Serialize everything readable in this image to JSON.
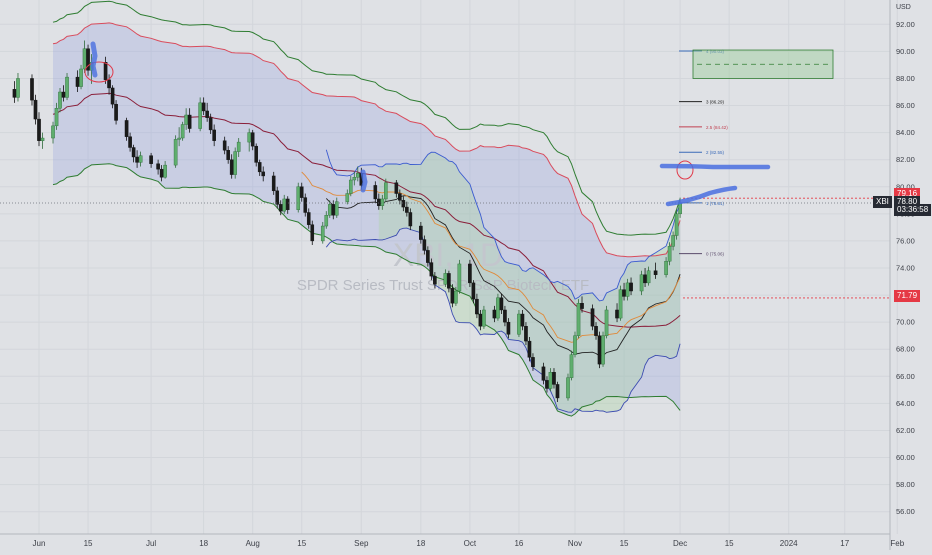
{
  "watermark": {
    "symbol": "XBI, 1D",
    "description": "SPDR Series Trust SPDR S&P Biotech ETF"
  },
  "currency_label": "USD",
  "ticker_tag": "XBI",
  "price_tags": {
    "upper": "79.16",
    "last": "78.80",
    "countdown": "03:36:58",
    "lower": "71.79"
  },
  "fib_levels": [
    {
      "label": "0 (75.06)",
      "value": 75.06,
      "color": "#5a4a6a"
    },
    {
      "label": "1 (78.81)",
      "value": 78.81,
      "color": "#3a6ab8"
    },
    {
      "label": "2 (82.55)",
      "value": 82.55,
      "color": "#3a6ab8"
    },
    {
      "label": "2.5 (84.42)",
      "value": 84.42,
      "color": "#c04050"
    },
    {
      "label": "3 (86.29)",
      "value": 86.29,
      "color": "#222222"
    },
    {
      "label": "4 (90.03)",
      "value": 90.03,
      "color": "#3a6ab8"
    }
  ],
  "colors": {
    "up": "#5fae6e",
    "down": "#1b1b1b",
    "bg": "#dfe1e5",
    "accent_blue": "#4a6fe0",
    "annotation_red": "#e03a4a"
  },
  "chart_data": {
    "type": "candlestick",
    "ylim": [
      54.5,
      93.5
    ],
    "yticks": [
      56,
      58,
      60,
      62,
      64,
      66,
      68,
      70,
      72,
      74,
      76,
      78,
      80,
      82,
      84,
      86,
      88,
      90,
      92
    ],
    "ytick_labels": [
      "56.00",
      "58.00",
      "60.00",
      "62.00",
      "64.00",
      "66.00",
      "68.00",
      "70.00",
      "72.00",
      "74.00",
      "76.00",
      "78.00",
      "80.00",
      "82.00",
      "84.00",
      "86.00",
      "88.00",
      "90.00",
      "92.00"
    ],
    "xticks": [
      {
        "label": "Jun",
        "date": "2023-06-01"
      },
      {
        "label": "15",
        "date": "2023-06-15"
      },
      {
        "label": "Jul",
        "date": "2023-07-03"
      },
      {
        "label": "18",
        "date": "2023-07-18"
      },
      {
        "label": "Aug",
        "date": "2023-08-01"
      },
      {
        "label": "15",
        "date": "2023-08-15"
      },
      {
        "label": "Sep",
        "date": "2023-09-01"
      },
      {
        "label": "18",
        "date": "2023-09-18"
      },
      {
        "label": "Oct",
        "date": "2023-10-02"
      },
      {
        "label": "16",
        "date": "2023-10-16"
      },
      {
        "label": "Nov",
        "date": "2023-11-01"
      },
      {
        "label": "15",
        "date": "2023-11-15"
      },
      {
        "label": "Dec",
        "date": "2023-12-01"
      },
      {
        "label": "15",
        "date": "2023-12-15"
      },
      {
        "label": "2024",
        "date": "2024-01-01"
      },
      {
        "label": "17",
        "date": "2024-01-17"
      },
      {
        "label": "Feb",
        "date": "2024-02-01"
      }
    ],
    "candles": [
      [
        "2023-05-25",
        87.2,
        87.8,
        86.2,
        86.6
      ],
      [
        "2023-05-26",
        86.6,
        88.4,
        86.3,
        88.0
      ],
      [
        "2023-05-30",
        88.0,
        88.3,
        86.0,
        86.4
      ],
      [
        "2023-05-31",
        86.4,
        86.8,
        84.6,
        85.0
      ],
      [
        "2023-06-01",
        85.0,
        85.5,
        83.0,
        83.4
      ],
      [
        "2023-06-02",
        83.4,
        84.0,
        82.8,
        83.6
      ],
      [
        "2023-06-05",
        83.6,
        84.8,
        83.2,
        84.5
      ],
      [
        "2023-06-06",
        84.5,
        86.2,
        84.2,
        85.8
      ],
      [
        "2023-06-07",
        85.8,
        87.3,
        85.5,
        87.0
      ],
      [
        "2023-06-08",
        87.0,
        87.5,
        86.3,
        86.6
      ],
      [
        "2023-06-09",
        86.6,
        88.4,
        86.4,
        88.1
      ],
      [
        "2023-06-12",
        88.1,
        88.6,
        87.0,
        87.4
      ],
      [
        "2023-06-13",
        87.4,
        89.0,
        87.2,
        88.7
      ],
      [
        "2023-06-14",
        88.7,
        90.8,
        88.4,
        90.2
      ],
      [
        "2023-06-15",
        90.2,
        90.5,
        88.2,
        88.6
      ],
      [
        "2023-06-16",
        88.6,
        89.8,
        87.6,
        89.2
      ],
      [
        "2023-06-20",
        89.2,
        89.6,
        87.6,
        87.9
      ],
      [
        "2023-06-21",
        87.9,
        88.3,
        86.8,
        87.3
      ],
      [
        "2023-06-22",
        87.3,
        87.5,
        85.8,
        86.1
      ],
      [
        "2023-06-23",
        86.1,
        86.4,
        84.6,
        84.9
      ],
      [
        "2023-06-26",
        84.9,
        85.1,
        83.4,
        83.7
      ],
      [
        "2023-06-27",
        83.7,
        84.0,
        82.6,
        82.9
      ],
      [
        "2023-06-28",
        82.9,
        83.1,
        81.8,
        82.2
      ],
      [
        "2023-06-29",
        82.2,
        82.7,
        81.4,
        81.8
      ],
      [
        "2023-06-30",
        81.8,
        82.6,
        81.5,
        82.3
      ],
      [
        "2023-07-03",
        82.3,
        82.5,
        81.4,
        81.7
      ],
      [
        "2023-07-05",
        81.7,
        82.0,
        80.9,
        81.3
      ],
      [
        "2023-07-06",
        81.3,
        81.6,
        80.4,
        80.7
      ],
      [
        "2023-07-07",
        80.7,
        81.9,
        80.6,
        81.6
      ],
      [
        "2023-07-10",
        81.6,
        83.8,
        81.4,
        83.5
      ],
      [
        "2023-07-11",
        83.5,
        84.4,
        83.0,
        83.6
      ],
      [
        "2023-07-12",
        83.6,
        84.8,
        83.4,
        84.6
      ],
      [
        "2023-07-13",
        84.6,
        85.8,
        84.2,
        85.3
      ],
      [
        "2023-07-14",
        85.3,
        85.8,
        84.0,
        84.3
      ],
      [
        "2023-07-17",
        84.3,
        86.6,
        84.1,
        86.2
      ],
      [
        "2023-07-18",
        86.2,
        86.6,
        85.3,
        85.6
      ],
      [
        "2023-07-19",
        85.6,
        86.2,
        84.8,
        85.1
      ],
      [
        "2023-07-20",
        85.1,
        85.4,
        83.9,
        84.2
      ],
      [
        "2023-07-21",
        84.2,
        84.6,
        83.0,
        83.4
      ],
      [
        "2023-07-24",
        83.4,
        83.7,
        82.4,
        82.7
      ],
      [
        "2023-07-25",
        82.7,
        83.0,
        81.7,
        82.0
      ],
      [
        "2023-07-26",
        82.0,
        82.4,
        80.6,
        80.9
      ],
      [
        "2023-07-27",
        80.9,
        82.9,
        80.6,
        82.6
      ],
      [
        "2023-07-28",
        82.6,
        83.6,
        82.2,
        83.3
      ],
      [
        "2023-07-31",
        83.3,
        84.3,
        82.6,
        84.0
      ],
      [
        "2023-08-01",
        84.0,
        84.2,
        82.7,
        83.0
      ],
      [
        "2023-08-02",
        83.0,
        83.2,
        81.5,
        81.8
      ],
      [
        "2023-08-03",
        81.8,
        82.0,
        80.8,
        81.1
      ],
      [
        "2023-08-04",
        81.1,
        81.5,
        80.4,
        80.8
      ],
      [
        "2023-08-07",
        80.8,
        81.1,
        79.4,
        79.7
      ],
      [
        "2023-08-08",
        79.7,
        80.0,
        78.4,
        78.7
      ],
      [
        "2023-08-09",
        78.7,
        79.0,
        77.9,
        78.2
      ],
      [
        "2023-08-10",
        78.2,
        79.4,
        78.0,
        79.1
      ],
      [
        "2023-08-11",
        79.1,
        79.3,
        78.0,
        78.3
      ],
      [
        "2023-08-14",
        78.3,
        80.3,
        78.1,
        80.0
      ],
      [
        "2023-08-15",
        80.0,
        80.3,
        78.9,
        79.2
      ],
      [
        "2023-08-16",
        79.2,
        79.5,
        77.8,
        78.1
      ],
      [
        "2023-08-17",
        78.1,
        78.4,
        76.9,
        77.2
      ],
      [
        "2023-08-18",
        77.2,
        77.5,
        75.7,
        76.0
      ],
      [
        "2023-08-21",
        76.0,
        77.4,
        75.8,
        77.1
      ],
      [
        "2023-08-22",
        77.1,
        78.2,
        76.9,
        77.9
      ],
      [
        "2023-08-23",
        77.9,
        79.0,
        77.7,
        78.7
      ],
      [
        "2023-08-24",
        78.7,
        79.0,
        77.6,
        77.9
      ],
      [
        "2023-08-25",
        77.9,
        79.2,
        77.7,
        78.9
      ],
      [
        "2023-08-28",
        78.9,
        79.8,
        78.7,
        79.5
      ],
      [
        "2023-08-29",
        79.5,
        80.8,
        79.3,
        80.5
      ],
      [
        "2023-08-30",
        80.5,
        81.1,
        80.1,
        80.7
      ],
      [
        "2023-08-31",
        80.7,
        81.5,
        80.4,
        81.0
      ],
      [
        "2023-09-01",
        81.0,
        81.4,
        79.8,
        80.1
      ],
      [
        "2023-09-05",
        80.1,
        80.4,
        78.8,
        79.1
      ],
      [
        "2023-09-06",
        79.1,
        79.5,
        78.3,
        78.6
      ],
      [
        "2023-09-07",
        78.6,
        79.4,
        78.3,
        79.1
      ],
      [
        "2023-09-08",
        79.1,
        80.6,
        78.9,
        80.3
      ],
      [
        "2023-09-11",
        80.3,
        80.5,
        79.2,
        79.5
      ],
      [
        "2023-09-12",
        79.5,
        79.8,
        78.7,
        79.0
      ],
      [
        "2023-09-13",
        79.0,
        79.3,
        78.2,
        78.5
      ],
      [
        "2023-09-14",
        78.5,
        78.9,
        77.8,
        78.1
      ],
      [
        "2023-09-15",
        78.1,
        78.4,
        76.8,
        77.1
      ],
      [
        "2023-09-18",
        77.1,
        77.4,
        75.8,
        76.1
      ],
      [
        "2023-09-19",
        76.1,
        76.4,
        75.0,
        75.3
      ],
      [
        "2023-09-20",
        75.3,
        75.6,
        74.1,
        74.4
      ],
      [
        "2023-09-21",
        74.4,
        74.7,
        73.1,
        73.4
      ],
      [
        "2023-09-22",
        73.4,
        73.7,
        72.5,
        72.8
      ],
      [
        "2023-09-25",
        72.8,
        73.9,
        72.6,
        73.6
      ],
      [
        "2023-09-26",
        73.6,
        73.8,
        72.2,
        72.5
      ],
      [
        "2023-09-27",
        72.5,
        72.8,
        71.1,
        71.4
      ],
      [
        "2023-09-28",
        71.4,
        72.6,
        71.2,
        72.3
      ],
      [
        "2023-09-29",
        72.3,
        74.6,
        72.1,
        74.3
      ],
      [
        "2023-10-02",
        74.3,
        74.6,
        72.6,
        72.9
      ],
      [
        "2023-10-03",
        72.9,
        73.1,
        71.4,
        71.7
      ],
      [
        "2023-10-04",
        71.7,
        72.1,
        70.3,
        70.6
      ],
      [
        "2023-10-05",
        70.6,
        70.9,
        69.4,
        69.7
      ],
      [
        "2023-10-06",
        69.7,
        71.2,
        69.5,
        70.9
      ],
      [
        "2023-10-09",
        70.9,
        71.2,
        70.0,
        70.3
      ],
      [
        "2023-10-10",
        70.3,
        72.1,
        70.1,
        71.8
      ],
      [
        "2023-10-11",
        71.8,
        72.1,
        70.6,
        70.9
      ],
      [
        "2023-10-12",
        70.9,
        71.2,
        69.7,
        70.0
      ],
      [
        "2023-10-13",
        70.0,
        70.3,
        68.8,
        69.1
      ],
      [
        "2023-10-16",
        69.1,
        70.9,
        68.9,
        70.6
      ],
      [
        "2023-10-17",
        70.6,
        70.9,
        69.4,
        69.7
      ],
      [
        "2023-10-18",
        69.7,
        70.0,
        68.3,
        68.6
      ],
      [
        "2023-10-19",
        68.6,
        68.9,
        67.1,
        67.4
      ],
      [
        "2023-10-20",
        67.4,
        67.7,
        66.4,
        66.7
      ],
      [
        "2023-10-23",
        66.7,
        67.0,
        65.4,
        65.7
      ],
      [
        "2023-10-24",
        65.7,
        66.0,
        64.8,
        65.1
      ],
      [
        "2023-10-25",
        65.1,
        66.6,
        64.9,
        66.3
      ],
      [
        "2023-10-26",
        66.3,
        66.6,
        65.1,
        65.4
      ],
      [
        "2023-10-27",
        65.4,
        65.6,
        64.1,
        64.4
      ],
      [
        "2023-10-30",
        64.4,
        66.2,
        64.2,
        65.9
      ],
      [
        "2023-10-31",
        65.9,
        67.9,
        65.7,
        67.6
      ],
      [
        "2023-11-01",
        67.6,
        69.3,
        67.4,
        69.0
      ],
      [
        "2023-11-02",
        69.0,
        71.7,
        68.8,
        71.4
      ],
      [
        "2023-11-03",
        71.4,
        71.9,
        70.7,
        71.0
      ],
      [
        "2023-11-06",
        71.0,
        71.3,
        69.4,
        69.7
      ],
      [
        "2023-11-07",
        69.7,
        70.0,
        68.7,
        69.0
      ],
      [
        "2023-11-08",
        69.0,
        69.3,
        66.6,
        66.9
      ],
      [
        "2023-11-09",
        66.9,
        69.3,
        66.7,
        69.0
      ],
      [
        "2023-11-10",
        69.0,
        71.2,
        68.8,
        70.9
      ],
      [
        "2023-11-13",
        70.9,
        71.4,
        70.0,
        70.3
      ],
      [
        "2023-11-14",
        70.3,
        72.7,
        70.1,
        72.4
      ],
      [
        "2023-11-15",
        72.4,
        72.9,
        71.6,
        71.9
      ],
      [
        "2023-11-16",
        71.9,
        73.2,
        71.6,
        72.9
      ],
      [
        "2023-11-17",
        72.9,
        73.3,
        72.0,
        72.3
      ],
      [
        "2023-11-20",
        72.3,
        73.8,
        72.0,
        73.5
      ],
      [
        "2023-11-21",
        73.5,
        74.0,
        72.6,
        72.9
      ],
      [
        "2023-11-22",
        72.9,
        74.1,
        72.7,
        73.8
      ],
      [
        "2023-11-24",
        73.8,
        74.4,
        73.2,
        73.5
      ],
      [
        "2023-11-27",
        73.5,
        74.8,
        73.3,
        74.5
      ],
      [
        "2023-11-28",
        74.5,
        75.9,
        74.2,
        75.6
      ],
      [
        "2023-11-29",
        75.6,
        76.7,
        75.3,
        76.4
      ],
      [
        "2023-11-30",
        76.4,
        78.3,
        76.1,
        78.0
      ],
      [
        "2023-12-01",
        78.0,
        79.2,
        77.7,
        78.8
      ]
    ]
  }
}
